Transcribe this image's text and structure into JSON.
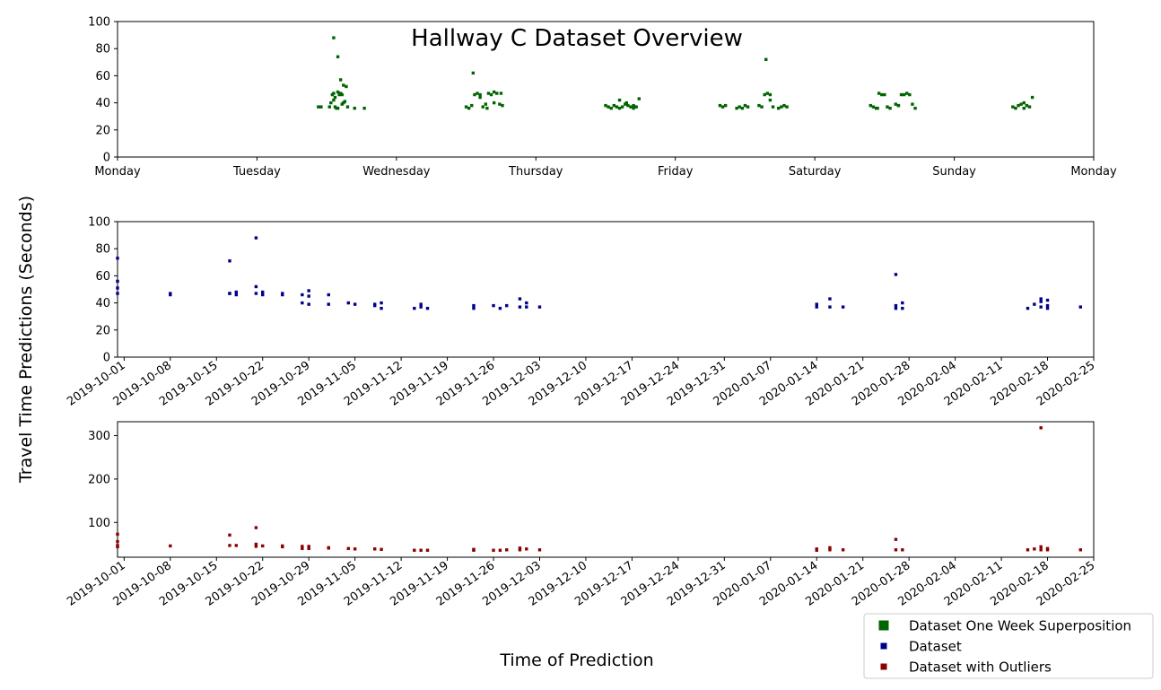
{
  "chart_data": [
    {
      "type": "scatter",
      "title": "Hallway C Dataset Overview",
      "xlabel": "",
      "ylabel": "",
      "ylim": [
        0,
        100
      ],
      "yticks": [
        0,
        20,
        40,
        60,
        80,
        100
      ],
      "xlim": [
        0,
        7
      ],
      "xticks": [
        0,
        1,
        2,
        3,
        4,
        5,
        6,
        7
      ],
      "xticklabels": [
        "Monday",
        "Tuesday",
        "Wednesday",
        "Thursday",
        "Friday",
        "Saturday",
        "Sunday",
        "Monday"
      ],
      "grid": false,
      "series": [
        {
          "name": "Dataset One Week Superposition",
          "color": "#006400",
          "x": [
            1.44,
            1.46,
            1.52,
            1.53,
            1.54,
            1.55,
            1.55,
            1.56,
            1.57,
            1.58,
            1.59,
            1.6,
            1.61,
            1.62,
            1.63,
            1.65,
            1.55,
            1.58,
            1.6,
            1.62,
            1.64,
            1.7,
            1.77,
            1.56,
            1.58,
            1.61,
            2.5,
            2.52,
            2.54,
            2.56,
            2.58,
            2.6,
            2.62,
            2.64,
            2.66,
            2.68,
            2.7,
            2.72,
            2.74,
            2.76,
            2.55,
            2.6,
            2.65,
            2.7,
            2.75,
            3.5,
            3.52,
            3.54,
            3.56,
            3.58,
            3.6,
            3.62,
            3.64,
            3.66,
            3.68,
            3.7,
            3.72,
            3.74,
            3.6,
            3.65,
            3.7,
            4.32,
            4.34,
            4.36,
            4.44,
            4.46,
            4.48,
            4.5,
            4.52,
            4.6,
            4.62,
            4.64,
            4.66,
            4.68,
            4.7,
            4.74,
            4.76,
            4.78,
            4.8,
            4.65,
            4.68,
            5.4,
            5.42,
            5.44,
            5.46,
            5.48,
            5.5,
            5.52,
            5.54,
            5.58,
            5.6,
            5.62,
            5.64,
            5.66,
            5.68,
            5.7,
            5.72,
            5.45,
            5.6,
            6.42,
            6.44,
            6.46,
            6.48,
            6.5,
            6.52,
            6.54,
            6.56,
            6.5
          ],
          "y": [
            37,
            37,
            37,
            40,
            46,
            47,
            42,
            37,
            36,
            36,
            46,
            47,
            46,
            40,
            41,
            37,
            88,
            74,
            57,
            53,
            52,
            36,
            36,
            44,
            48,
            39,
            37,
            36,
            38,
            46,
            47,
            46,
            37,
            39,
            47,
            46,
            48,
            47,
            39,
            38,
            62,
            44,
            36,
            40,
            47,
            38,
            37,
            36,
            38,
            37,
            36,
            37,
            39,
            38,
            37,
            38,
            37,
            43,
            42,
            40,
            36,
            38,
            37,
            38,
            36,
            37,
            36,
            38,
            37,
            38,
            37,
            46,
            47,
            46,
            37,
            36,
            37,
            38,
            37,
            72,
            42,
            38,
            37,
            36,
            47,
            46,
            46,
            37,
            36,
            39,
            38,
            46,
            46,
            47,
            46,
            39,
            36,
            36,
            38,
            37,
            36,
            38,
            39,
            40,
            38,
            37,
            44,
            36
          ]
        }
      ]
    },
    {
      "type": "scatter",
      "title": "",
      "xlabel": "",
      "ylabel": "",
      "ylim": [
        0,
        100
      ],
      "yticks": [
        0,
        20,
        40,
        60,
        80,
        100
      ],
      "xlim": [
        "2019-09-30",
        "2020-02-25"
      ],
      "xticks": [
        "2019-10-01",
        "2019-10-08",
        "2019-10-15",
        "2019-10-22",
        "2019-10-29",
        "2019-11-05",
        "2019-11-12",
        "2019-11-19",
        "2019-11-26",
        "2019-12-03",
        "2019-12-10",
        "2019-12-17",
        "2019-12-24",
        "2019-12-31",
        "2020-01-07",
        "2020-01-14",
        "2020-01-21",
        "2020-01-28",
        "2020-02-04",
        "2020-02-11",
        "2020-02-18",
        "2020-02-25"
      ],
      "grid": false,
      "series": [
        {
          "name": "Dataset",
          "color": "#00008b",
          "x": [
            "2019-09-30",
            "2019-09-30",
            "2019-09-30",
            "2019-09-30",
            "2019-10-08",
            "2019-10-08",
            "2019-10-17",
            "2019-10-17",
            "2019-10-18",
            "2019-10-18",
            "2019-10-17",
            "2019-10-21",
            "2019-10-21",
            "2019-10-21",
            "2019-10-22",
            "2019-10-22",
            "2019-10-25",
            "2019-10-25",
            "2019-10-28",
            "2019-10-28",
            "2019-10-29",
            "2019-10-29",
            "2019-10-29",
            "2019-11-01",
            "2019-11-01",
            "2019-11-04",
            "2019-11-05",
            "2019-11-08",
            "2019-11-08",
            "2019-11-09",
            "2019-11-09",
            "2019-11-14",
            "2019-11-15",
            "2019-11-15",
            "2019-11-16",
            "2019-11-23",
            "2019-11-23",
            "2019-11-26",
            "2019-11-27",
            "2019-11-28",
            "2019-11-30",
            "2019-11-30",
            "2019-12-01",
            "2019-12-01",
            "2019-12-03",
            "2020-01-14",
            "2020-01-14",
            "2020-01-16",
            "2020-01-16",
            "2020-01-18",
            "2020-01-26",
            "2020-01-26",
            "2020-01-26",
            "2020-01-27",
            "2020-01-27",
            "2020-02-15",
            "2020-02-16",
            "2020-02-17",
            "2020-02-17",
            "2020-02-17",
            "2020-02-18",
            "2020-02-18",
            "2020-02-18",
            "2020-02-23"
          ],
          "y": [
            73,
            56,
            51,
            47,
            46,
            47,
            71,
            47,
            48,
            46,
            47,
            88,
            52,
            47,
            46,
            48,
            46,
            47,
            46,
            40,
            49,
            45,
            39,
            46,
            39,
            40,
            39,
            39,
            38,
            40,
            36,
            36,
            37,
            39,
            36,
            38,
            36,
            38,
            36,
            38,
            43,
            37,
            40,
            37,
            37,
            37,
            39,
            43,
            37,
            37,
            61,
            38,
            36,
            40,
            36,
            36,
            39,
            37,
            41,
            43,
            42,
            36,
            38,
            37
          ]
        }
      ]
    },
    {
      "type": "scatter",
      "title": "",
      "xlabel": "Time of Prediction",
      "ylabel": "",
      "ylim": [
        20,
        332
      ],
      "yticks": [
        100,
        200,
        300
      ],
      "xlim": [
        "2019-09-30",
        "2020-02-25"
      ],
      "xticks": [
        "2019-10-01",
        "2019-10-08",
        "2019-10-15",
        "2019-10-22",
        "2019-10-29",
        "2019-11-05",
        "2019-11-12",
        "2019-11-19",
        "2019-11-26",
        "2019-12-03",
        "2019-12-10",
        "2019-12-17",
        "2019-12-24",
        "2019-12-31",
        "2020-01-07",
        "2020-01-14",
        "2020-01-21",
        "2020-01-28",
        "2020-02-04",
        "2020-02-11",
        "2020-02-18",
        "2020-02-25"
      ],
      "grid": false,
      "series": [
        {
          "name": "Dataset with Outliers",
          "color": "#8b0000",
          "x": [
            "2019-09-30",
            "2019-09-30",
            "2019-09-30",
            "2019-09-30",
            "2019-10-08",
            "2019-10-17",
            "2019-10-17",
            "2019-10-18",
            "2019-10-21",
            "2019-10-21",
            "2019-10-21",
            "2019-10-22",
            "2019-10-25",
            "2019-10-25",
            "2019-10-28",
            "2019-10-28",
            "2019-10-29",
            "2019-10-29",
            "2019-11-01",
            "2019-11-01",
            "2019-11-04",
            "2019-11-05",
            "2019-11-08",
            "2019-11-09",
            "2019-11-14",
            "2019-11-15",
            "2019-11-16",
            "2019-11-23",
            "2019-11-23",
            "2019-11-26",
            "2019-11-27",
            "2019-11-28",
            "2019-11-30",
            "2019-11-30",
            "2019-12-01",
            "2019-12-03",
            "2020-01-14",
            "2020-01-14",
            "2020-01-16",
            "2020-01-16",
            "2020-01-18",
            "2020-01-26",
            "2020-01-26",
            "2020-01-27",
            "2020-02-15",
            "2020-02-16",
            "2020-02-17",
            "2020-02-17",
            "2020-02-17",
            "2020-02-18",
            "2020-02-18",
            "2020-02-23"
          ],
          "y": [
            73,
            56,
            47,
            44,
            46,
            71,
            47,
            47,
            88,
            50,
            45,
            46,
            46,
            44,
            45,
            40,
            45,
            40,
            42,
            41,
            40,
            39,
            39,
            38,
            36,
            36,
            36,
            38,
            36,
            36,
            36,
            37,
            41,
            37,
            39,
            37,
            36,
            39,
            42,
            37,
            37,
            61,
            37,
            37,
            37,
            39,
            37,
            44,
            318,
            40,
            37,
            37
          ]
        }
      ]
    }
  ],
  "figure": {
    "shared_ylabel": "Travel Time Predictions (Seconds)",
    "shared_xlabel": "Time of Prediction",
    "legend": {
      "placement": "bottom-right",
      "entries": [
        {
          "label": "Dataset One Week Superposition",
          "color": "#006400"
        },
        {
          "label": "Dataset",
          "color": "#00008b"
        },
        {
          "label": "Dataset with Outliers",
          "color": "#8b0000"
        }
      ]
    }
  }
}
